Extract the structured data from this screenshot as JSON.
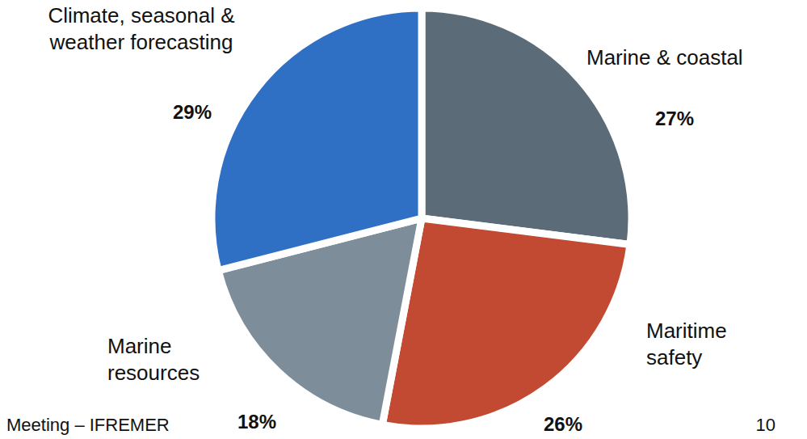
{
  "chart_data": {
    "type": "pie",
    "categories": [
      "Marine & coastal",
      "Maritime safety",
      "Marine resources",
      "Climate, seasonal & weather forecasting"
    ],
    "values": [
      27,
      26,
      18,
      29
    ],
    "value_labels": [
      "27%",
      "26%",
      "18%",
      "29%"
    ],
    "colors": [
      "#5b6b78",
      "#c24a32",
      "#7d8e9a",
      "#2f6fc4"
    ],
    "data_labels": true
  },
  "footer": {
    "text": "Meeting – IFREMER",
    "page": 10
  }
}
